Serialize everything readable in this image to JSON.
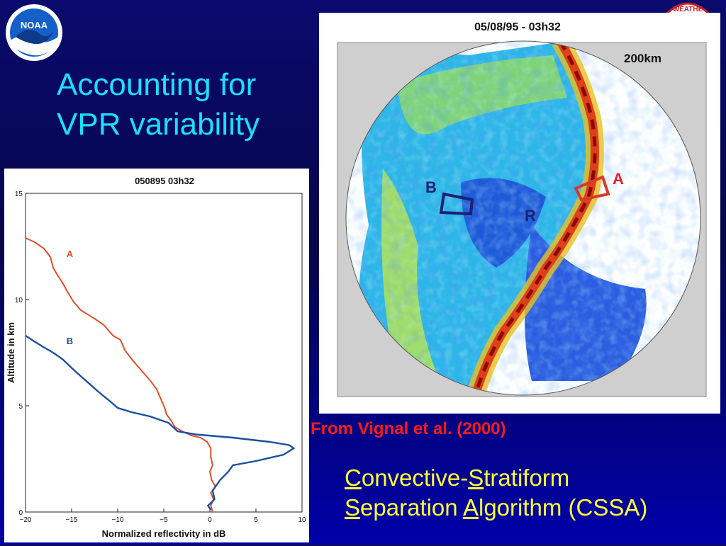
{
  "slide": {
    "title_line1": "Accounting for",
    "title_line2": "VPR variability",
    "source": "From Vignal et al. (2000)",
    "cssa": {
      "c1": "C",
      "c1_rest": "onvective-",
      "s1": "S",
      "s1_rest": "tratiform",
      "s2": "S",
      "s2_rest": "eparation ",
      "a1": "A",
      "a1_rest": "lgorithm (CSSA)"
    },
    "logo_text": "NOAA",
    "seal_text": "WEATHE"
  },
  "radar": {
    "title": "05/08/95 - 03h32",
    "range_label": "200km",
    "label_a": "A",
    "label_b": "B",
    "label_r": "R",
    "colors": {
      "box_a": "#d83a2a",
      "box_b": "#1c2270",
      "label_a": "#e8202a"
    }
  },
  "chart_data": {
    "type": "line",
    "title": "050895 03h32",
    "xlabel": "Normalized reflectivity in dB",
    "ylabel": "Altitude in km",
    "xlim": [
      -20,
      10
    ],
    "ylim": [
      0,
      15
    ],
    "xticks": [
      -20,
      -15,
      -10,
      -5,
      0,
      5,
      10
    ],
    "yticks": [
      0,
      5,
      10,
      15
    ],
    "grid": false,
    "series": [
      {
        "name": "A",
        "color": "#e0502a",
        "points": [
          [
            -20,
            12.9
          ],
          [
            -19,
            12.7
          ],
          [
            -18,
            12.4
          ],
          [
            -17.3,
            12.0
          ],
          [
            -17,
            11.5
          ],
          [
            -16.6,
            11.2
          ],
          [
            -16,
            10.8
          ],
          [
            -15.5,
            10.4
          ],
          [
            -14.8,
            9.9
          ],
          [
            -14,
            9.5
          ],
          [
            -12.5,
            9.1
          ],
          [
            -11.5,
            8.8
          ],
          [
            -10.5,
            8.3
          ],
          [
            -9.7,
            8.1
          ],
          [
            -9.2,
            7.6
          ],
          [
            -8.3,
            7.1
          ],
          [
            -7.3,
            6.6
          ],
          [
            -6.5,
            6.2
          ],
          [
            -5.8,
            5.8
          ],
          [
            -5.2,
            5.2
          ],
          [
            -4.9,
            4.9
          ],
          [
            -4.7,
            4.6
          ],
          [
            -4.2,
            4.3
          ],
          [
            -3.8,
            4.0
          ],
          [
            -3.0,
            3.8
          ],
          [
            -2.0,
            3.6
          ],
          [
            -1.0,
            3.5
          ],
          [
            -0.3,
            3.3
          ],
          [
            0.1,
            3.0
          ],
          [
            0.1,
            2.6
          ],
          [
            0.3,
            2.2
          ],
          [
            0.0,
            1.9
          ],
          [
            0.2,
            1.5
          ],
          [
            0.6,
            1.2
          ],
          [
            0.1,
            0.9
          ],
          [
            0.4,
            0.6
          ],
          [
            0.1,
            0.3
          ],
          [
            0.3,
            0.0
          ]
        ]
      },
      {
        "name": "B",
        "color": "#1a4fa0",
        "points": [
          [
            -20,
            8.3
          ],
          [
            -19.3,
            8.1
          ],
          [
            -18.2,
            7.8
          ],
          [
            -17,
            7.5
          ],
          [
            -16,
            7.2
          ],
          [
            -14.8,
            6.7
          ],
          [
            -13.5,
            6.2
          ],
          [
            -12.2,
            5.7
          ],
          [
            -10.8,
            5.2
          ],
          [
            -10,
            4.9
          ],
          [
            -8.5,
            4.7
          ],
          [
            -6.5,
            4.5
          ],
          [
            -4.5,
            4.2
          ],
          [
            -3.5,
            3.8
          ],
          [
            -1.5,
            3.65
          ],
          [
            2.5,
            3.5
          ],
          [
            6.5,
            3.3
          ],
          [
            8.6,
            3.15
          ],
          [
            9.1,
            3.0
          ],
          [
            8.0,
            2.7
          ],
          [
            5.0,
            2.4
          ],
          [
            2.5,
            2.2
          ],
          [
            2.0,
            1.9
          ],
          [
            1.1,
            1.5
          ],
          [
            0.3,
            1.0
          ],
          [
            0.5,
            0.6
          ],
          [
            -0.2,
            0.3
          ],
          [
            0.1,
            0.1
          ]
        ]
      }
    ],
    "annotations": [
      {
        "text": "A",
        "x": -15.2,
        "y": 12.0,
        "color": "#e0502a"
      },
      {
        "text": "B",
        "x": -15.2,
        "y": 7.9,
        "color": "#1a4fa0"
      }
    ]
  }
}
